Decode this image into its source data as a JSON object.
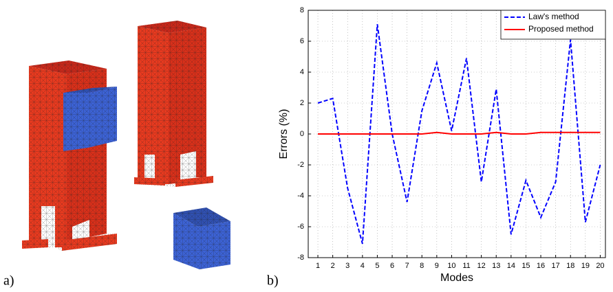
{
  "panel_labels": [
    "a)",
    "b)"
  ],
  "chart_data": {
    "type": "line",
    "x_label": "Modes",
    "y_label": "Errors (%)",
    "x": [
      1,
      2,
      3,
      4,
      5,
      6,
      7,
      8,
      9,
      10,
      11,
      12,
      13,
      14,
      15,
      16,
      17,
      18,
      19,
      20
    ],
    "series": [
      {
        "name": "Law's method",
        "color": "#0000ff",
        "dash": true,
        "values": [
          2.0,
          2.3,
          -3.5,
          -7.1,
          7.1,
          0.0,
          -4.4,
          1.5,
          4.6,
          0.2,
          4.9,
          -3.1,
          2.9,
          -6.5,
          -3.0,
          -5.4,
          -3.1,
          6.1,
          -5.7,
          -2.0
        ]
      },
      {
        "name": "Proposed method",
        "color": "#ff0000",
        "dash": false,
        "values": [
          0,
          0,
          0,
          0,
          0,
          0,
          0,
          0,
          0.1,
          0,
          0,
          0,
          0.1,
          0,
          0,
          0.1,
          0.1,
          0.1,
          0.1,
          0.1
        ]
      }
    ],
    "xlim": [
      0.35,
      20.35
    ],
    "xticks": [
      1,
      2,
      3,
      4,
      5,
      6,
      7,
      8,
      9,
      10,
      11,
      12,
      13,
      14,
      15,
      16,
      17,
      18,
      19,
      20
    ],
    "ylim": [
      -8,
      8
    ],
    "yticks": [
      -8,
      -6,
      -4,
      -2,
      0,
      2,
      4,
      6,
      8
    ],
    "grid": true,
    "legend": "upper-right"
  }
}
